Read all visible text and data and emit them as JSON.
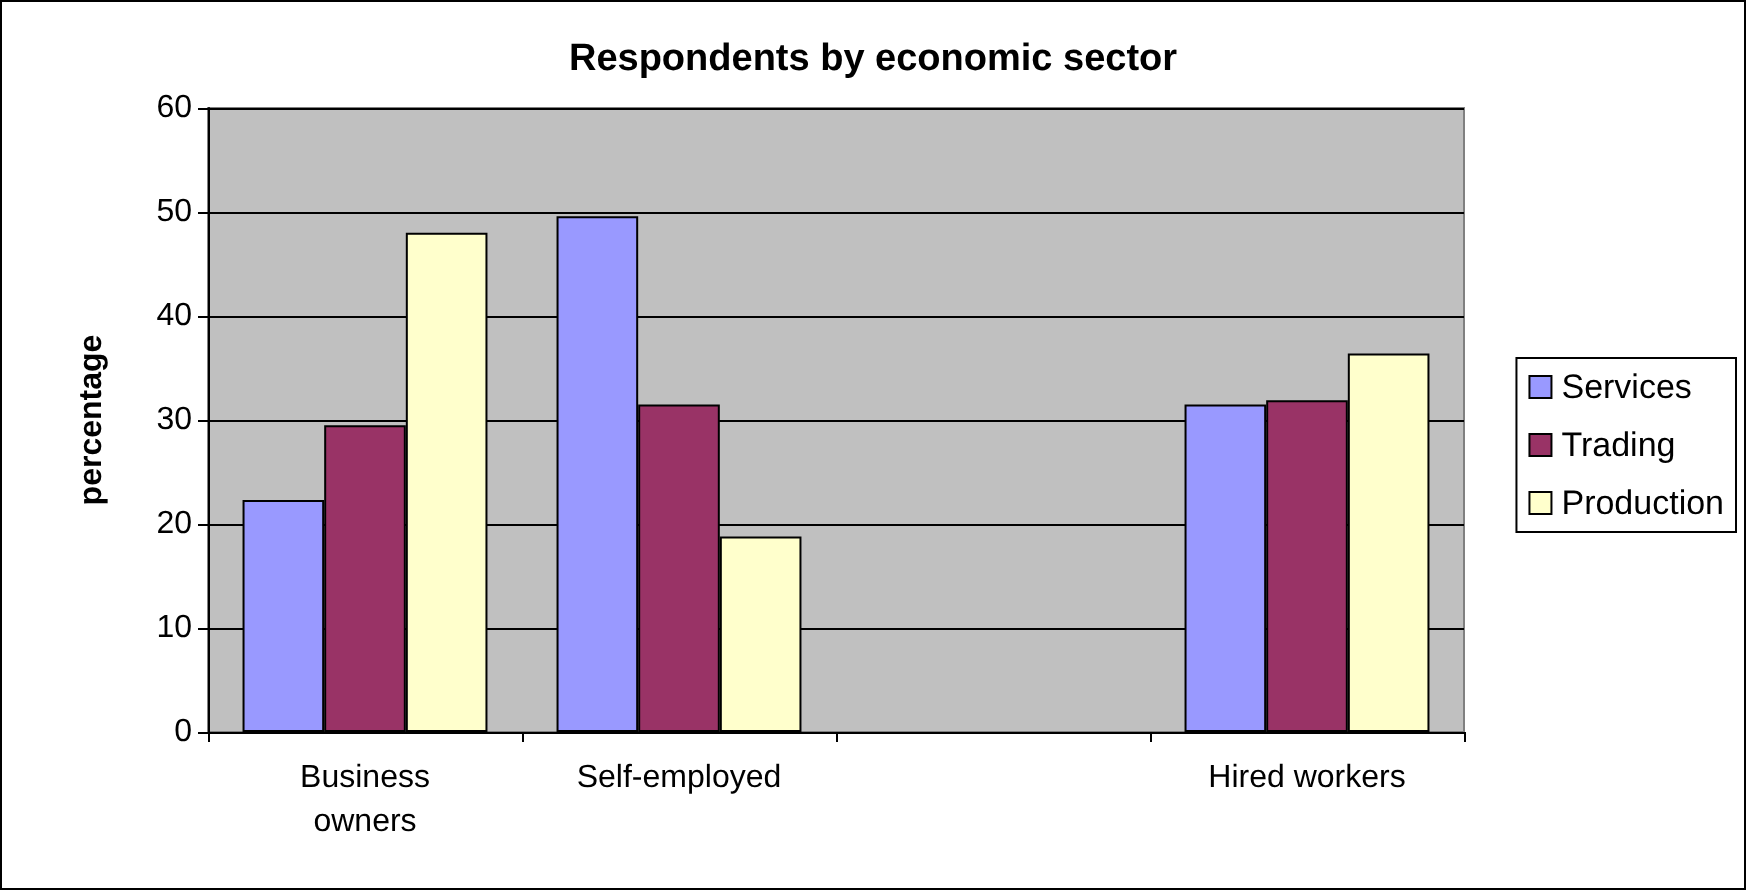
{
  "chart_data": {
    "type": "bar",
    "title": "Respondents by economic sector",
    "ylabel": "percentage",
    "categories": [
      "Business\nowners",
      "Self-employed",
      null,
      "Hired workers"
    ],
    "series": [
      {
        "name": "Services",
        "color": "#9999ff",
        "values": [
          22.3,
          49.6,
          null,
          31.5
        ]
      },
      {
        "name": "Trading",
        "color": "#993366",
        "values": [
          29.5,
          31.5,
          null,
          31.9
        ]
      },
      {
        "name": "Production",
        "color": "#ffffcc",
        "values": [
          48,
          18.8,
          null,
          36.4
        ]
      }
    ],
    "ylim": [
      0,
      60
    ],
    "yticks": [
      0,
      10,
      20,
      30,
      40,
      50,
      60
    ],
    "grid": "y",
    "legend": "right"
  }
}
